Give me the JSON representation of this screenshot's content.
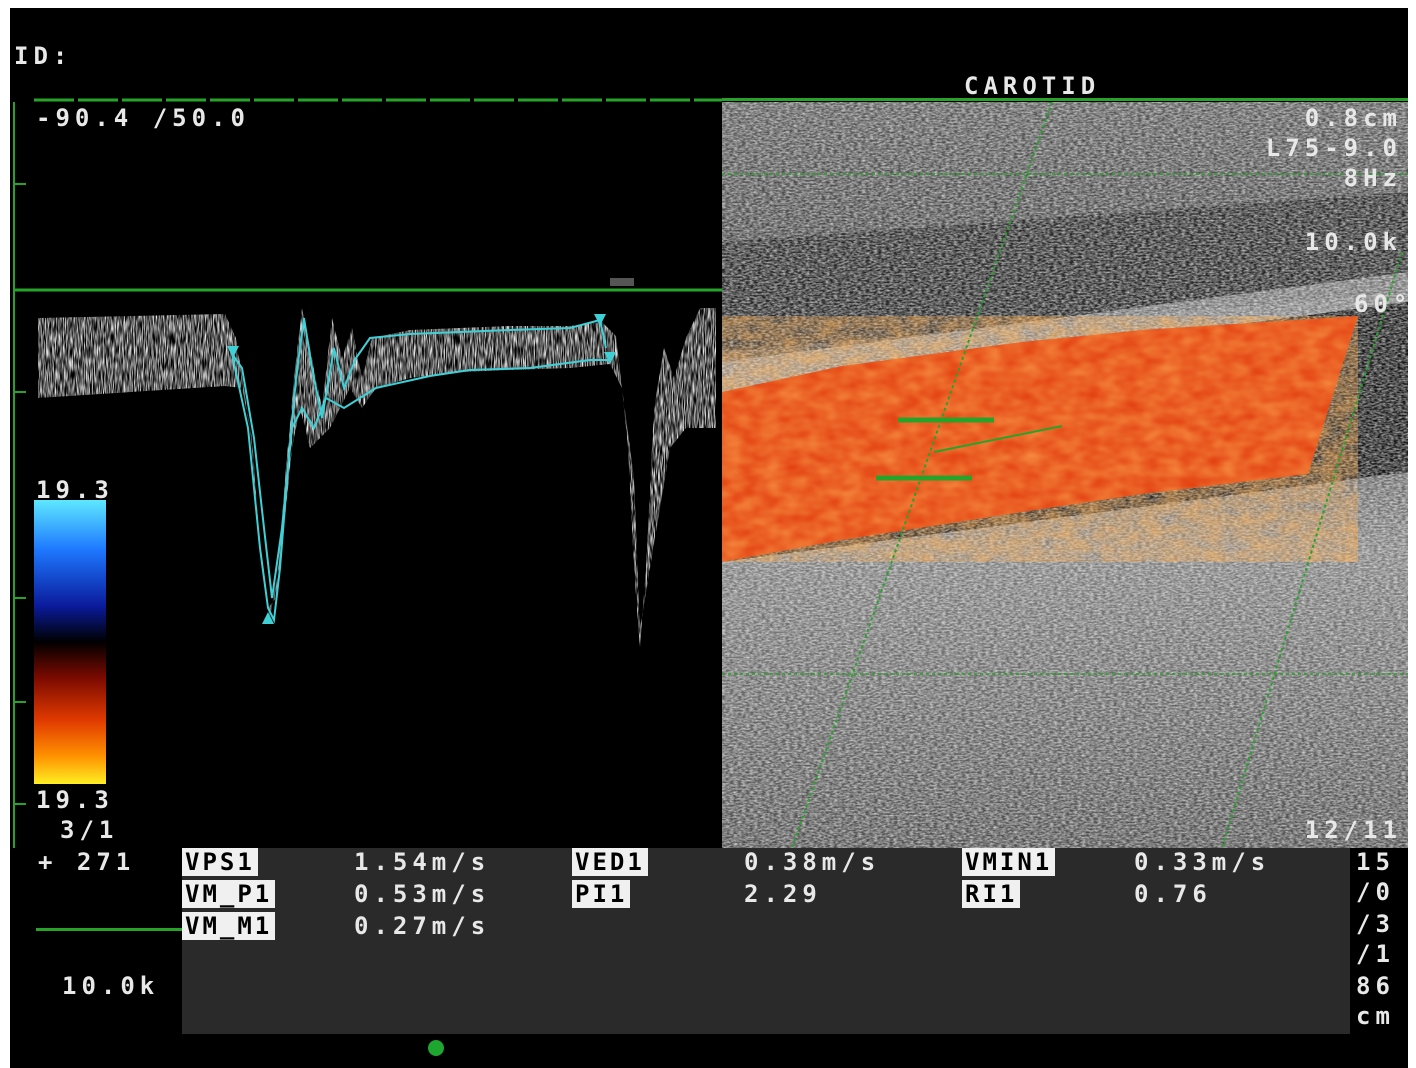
{
  "patient_id_label": "ID:",
  "preset": "CAROTID",
  "doppler_scale": "-90.4 /50.0",
  "right_params": [
    "0.8cm",
    "L75-9.0",
    "8Hz",
    "10.0k",
    "60°"
  ],
  "color_scale_top": "19.3",
  "color_scale_bottom": "19.3",
  "left_bottom": [
    "3/1",
    "+ 271"
  ],
  "prf": "10.0k",
  "frame_counter": "12/11",
  "right_column": [
    "15",
    "/0",
    "/3",
    "/1",
    "86",
    "cm"
  ],
  "measurements": {
    "row1": [
      {
        "label": "VPS1",
        "value": "1.54m/s"
      },
      {
        "label": "VED1",
        "value": "0.38m/s"
      },
      {
        "label": "VMIN1",
        "value": "0.33m/s"
      }
    ],
    "row2": [
      {
        "label": "VM_P1",
        "value": "0.53m/s"
      },
      {
        "label": "PI1",
        "value": "2.29"
      },
      {
        "label": "RI1",
        "value": "0.76"
      }
    ],
    "row3": [
      {
        "label": "VM_M1",
        "value": "0.27m/s"
      }
    ]
  },
  "colors": {
    "overlay_green": "#27a32a",
    "trace_cyan": "#3fd0d6",
    "flow_red": "#e0360a"
  }
}
